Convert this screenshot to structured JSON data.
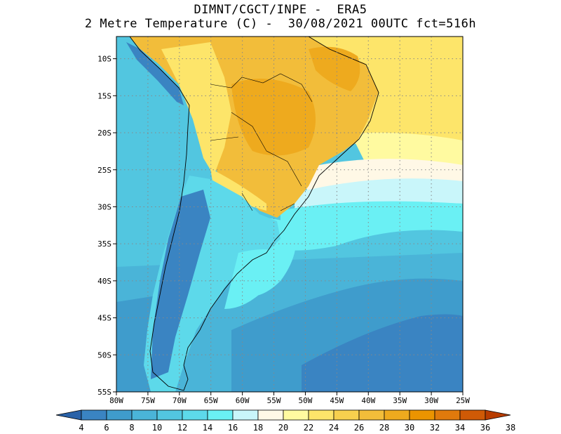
{
  "title": {
    "line1": "DIMNT/CGCT/INPE -  ERA5",
    "line2": "2 Metre Temperature (C) -  30/08/2021 00UTC fct=516h"
  },
  "map": {
    "region": "South America",
    "variable": "2 Metre Temperature",
    "units": "C",
    "lat_labels": [
      "10S",
      "15S",
      "20S",
      "25S",
      "30S",
      "35S",
      "40S",
      "45S",
      "50S",
      "55S"
    ],
    "lon_labels": [
      "80W",
      "75W",
      "70W",
      "65W",
      "60W",
      "55W",
      "50W",
      "45W",
      "40W",
      "35W",
      "30W",
      "25W"
    ],
    "lat_range": [
      -55,
      -7
    ],
    "lon_range": [
      -80,
      -25
    ]
  },
  "colorbar": {
    "labels": [
      "4",
      "6",
      "8",
      "10",
      "12",
      "14",
      "16",
      "18",
      "20",
      "22",
      "24",
      "26",
      "28",
      "30",
      "32",
      "34",
      "36",
      "38"
    ],
    "colors": [
      "#2a62a8",
      "#3a84c2",
      "#3f9ccc",
      "#4ab4d8",
      "#52c6e0",
      "#5dd9ea",
      "#6af0f4",
      "#c9f6fa",
      "#fff8e6",
      "#fffaa0",
      "#fde56a",
      "#f7d04e",
      "#f2bd3a",
      "#eeaa1e",
      "#eb9400",
      "#e07a0c",
      "#cf5a06",
      "#b83c00"
    ],
    "min_arrow_color": "#2a62a8",
    "max_arrow_color": "#b83c00"
  }
}
